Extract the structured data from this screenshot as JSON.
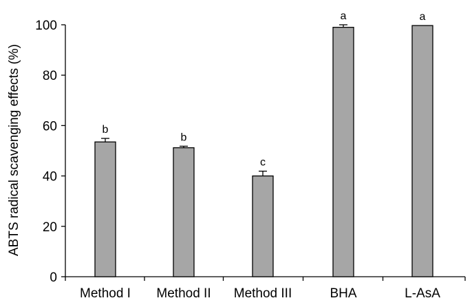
{
  "chart_data": {
    "type": "bar",
    "title": "",
    "xlabel": "",
    "ylabel": "ABTS radical scavenging effects (%)",
    "categories": [
      "Method I",
      "Method II",
      "Method III",
      "BHA",
      "L-AsA"
    ],
    "values": [
      53.5,
      51.2,
      40.0,
      99.0,
      99.7
    ],
    "errors": [
      1.4,
      0.6,
      1.9,
      1.0,
      0.0
    ],
    "significance": [
      "b",
      "b",
      "c",
      "a",
      "a"
    ],
    "ylim": [
      0,
      100
    ],
    "yticks": [
      0,
      20,
      40,
      60,
      80,
      100
    ],
    "grid": false,
    "bar_color": "#a6a6a6"
  }
}
